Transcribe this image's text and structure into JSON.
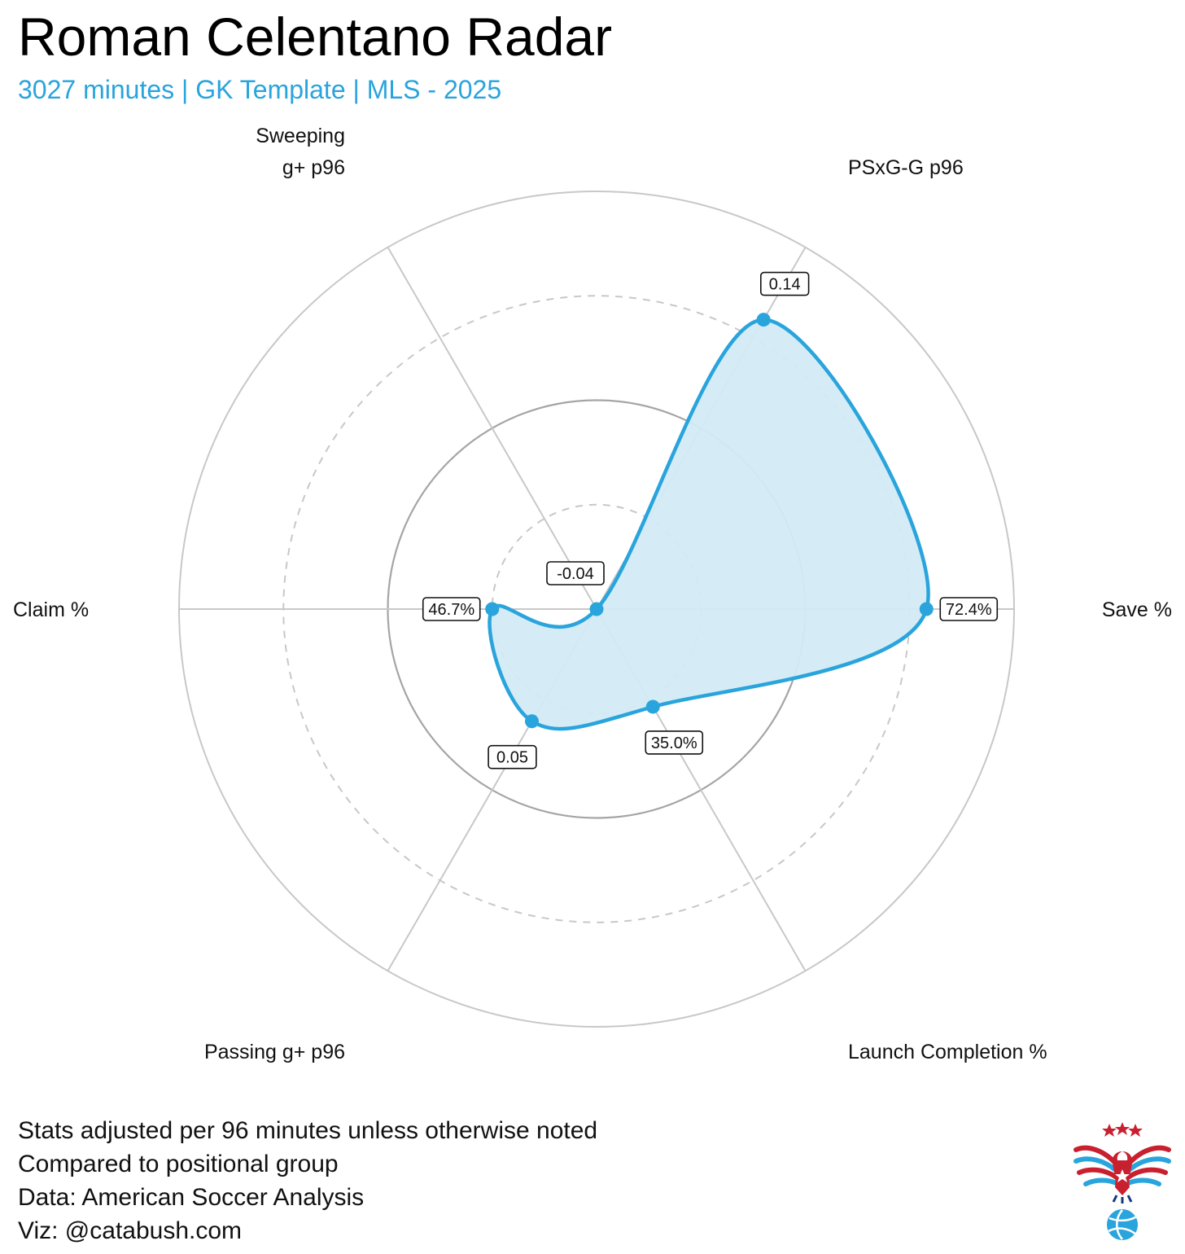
{
  "header": {
    "title": "Roman Celentano Radar",
    "subtitle": "3027 minutes | GK Template | MLS - 2025"
  },
  "chart_data": {
    "type": "radar",
    "axes": [
      {
        "lines": [
          "Save %"
        ],
        "label": "72.4%",
        "radius": 0.79
      },
      {
        "lines": [
          "PSxG-G p96"
        ],
        "label": "0.14",
        "radius": 0.8
      },
      {
        "lines": [
          "Sweeping",
          "g+ p96"
        ],
        "label": "-0.04",
        "radius": 0.0
      },
      {
        "lines": [
          "Claim %"
        ],
        "label": "46.7%",
        "radius": 0.25
      },
      {
        "lines": [
          "Passing g+ p96"
        ],
        "label": "0.05",
        "radius": 0.31
      },
      {
        "lines": [
          "Launch Completion %"
        ],
        "label": "35.0%",
        "radius": 0.27
      }
    ],
    "rings": [
      0.25,
      0.5,
      0.75,
      1.0
    ],
    "grid": true,
    "colors": {
      "series": "#29a4dc",
      "fill": "#d3ebf7",
      "grid_line": "#c8c8c8",
      "inner_ring": "#a5a5a5"
    }
  },
  "footer": {
    "lines": [
      "Stats adjusted per 96 minutes unless otherwise noted",
      "Compared to positional group",
      "Data: American Soccer Analysis",
      "Viz: @catabush.com"
    ]
  },
  "logo": {
    "icon": "eagle-soccer-ball-icon",
    "colors": [
      "#c8202f",
      "#29a4dc",
      "#15397a"
    ]
  }
}
